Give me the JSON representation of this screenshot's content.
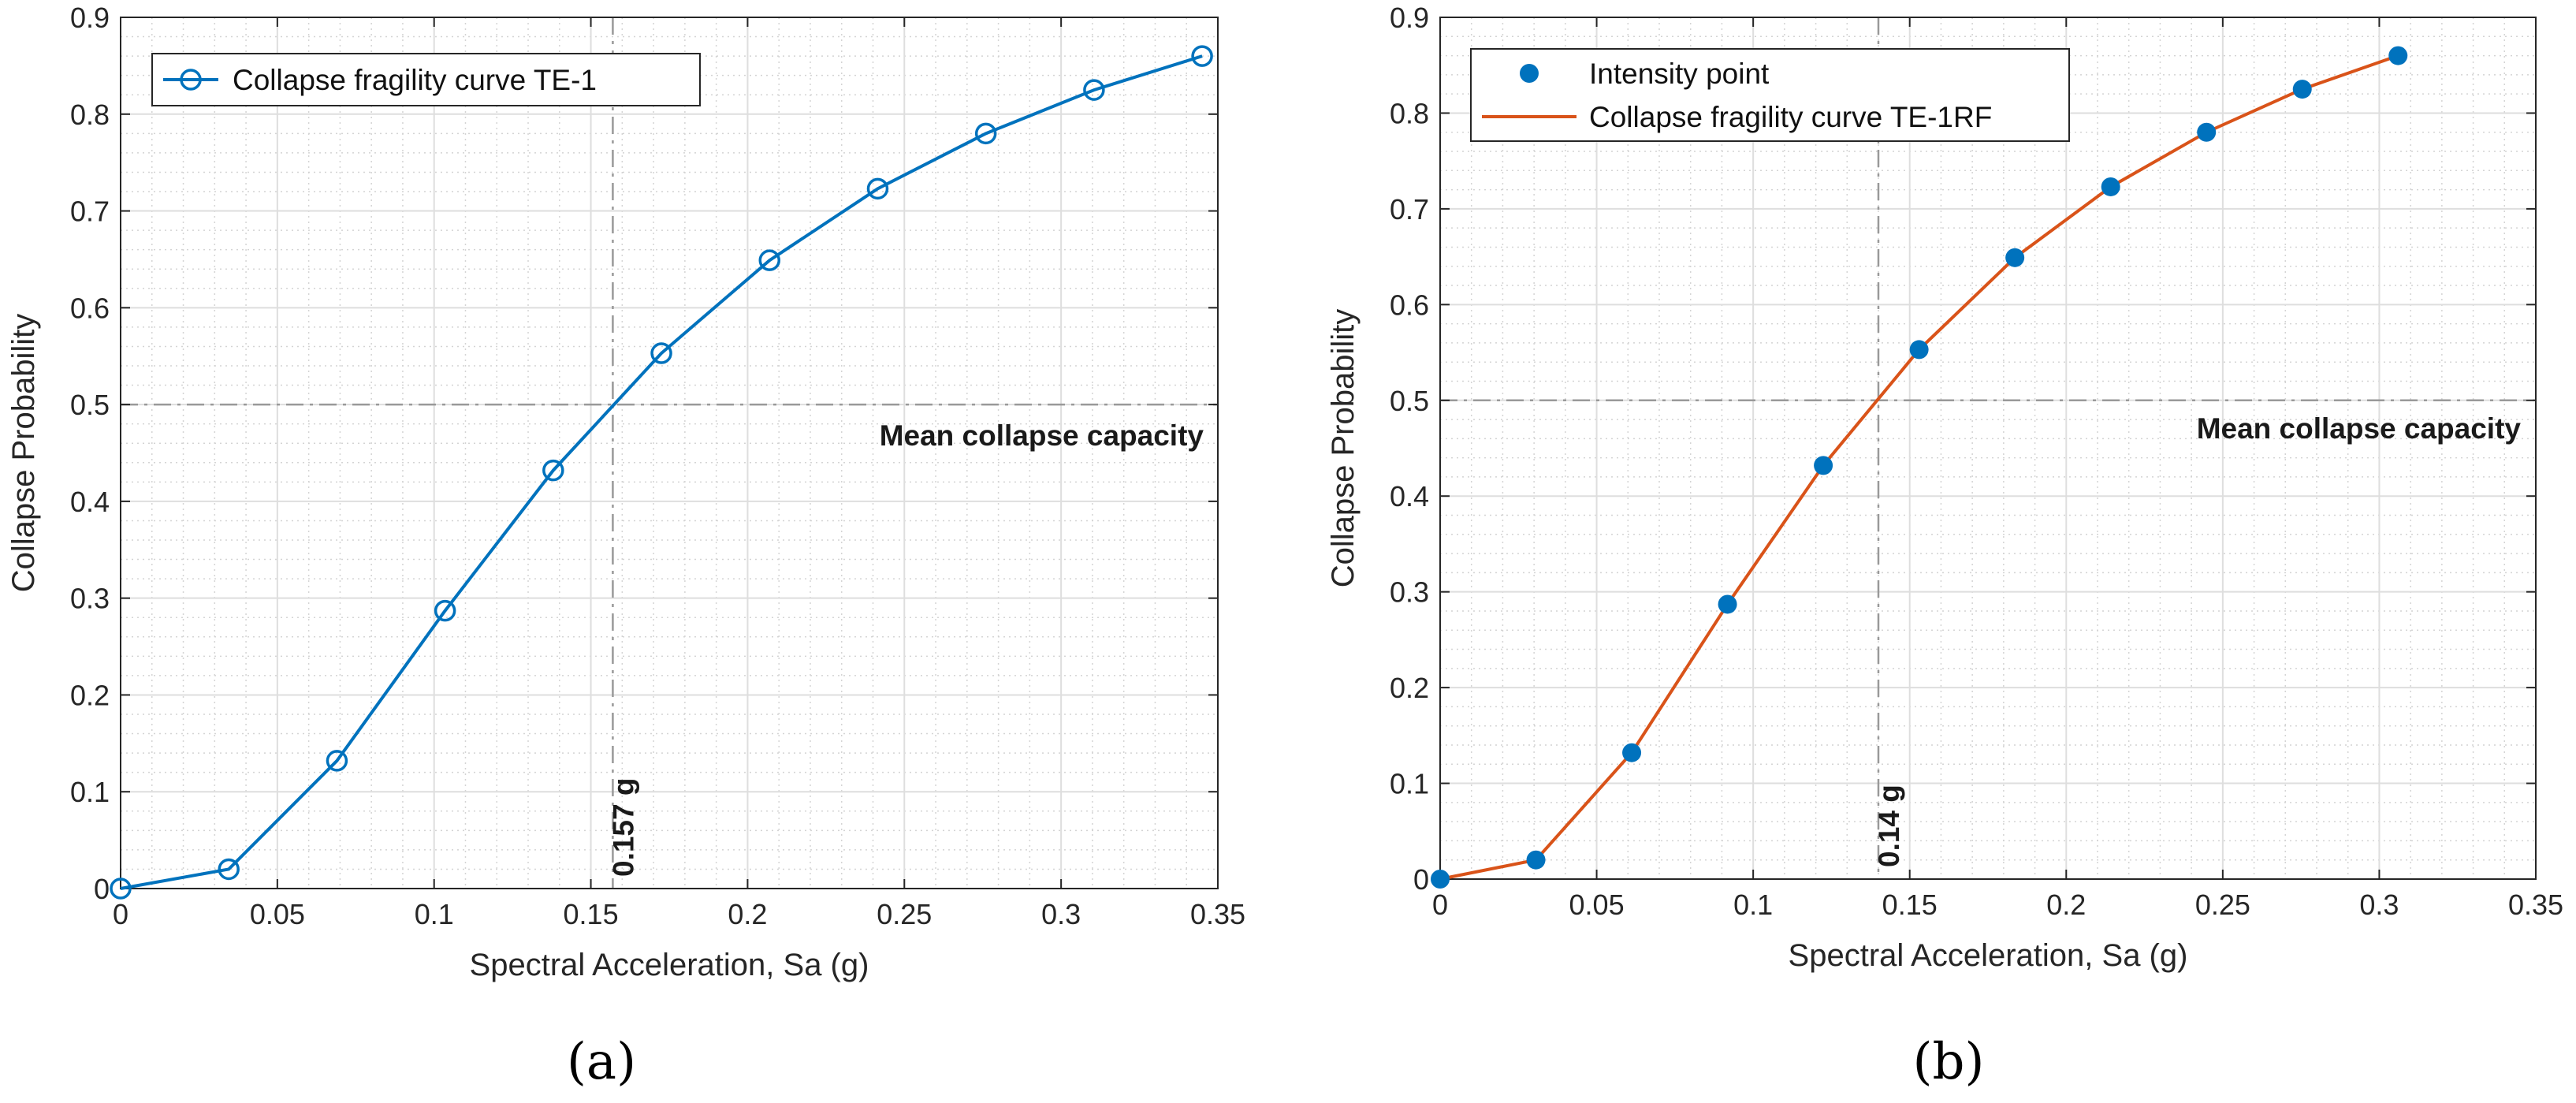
{
  "chart_data": [
    {
      "type": "line",
      "panel": "(a)",
      "xlabel": "Spectral Acceleration, Sa (g)",
      "ylabel": "Collapse Probability",
      "xlim": [
        0,
        0.35
      ],
      "ylim": [
        0,
        0.9
      ],
      "xticks": [
        0,
        0.05,
        0.1,
        0.15,
        0.2,
        0.25,
        0.3,
        0.35
      ],
      "xtick_labels": [
        "0",
        "0.05",
        "0.1",
        "0.15",
        "0.2",
        "0.25",
        "0.3",
        "0.35"
      ],
      "yticks": [
        0,
        0.1,
        0.2,
        0.3,
        0.4,
        0.5,
        0.6,
        0.7,
        0.8,
        0.9
      ],
      "ytick_labels": [
        "0",
        "0.1",
        "0.2",
        "0.3",
        "0.4",
        "0.5",
        "0.6",
        "0.7",
        "0.8",
        "0.9"
      ],
      "grid": true,
      "minor_grid": true,
      "series": [
        {
          "name": "Collapse fragility curve TE-1",
          "style": "line-with-circle-markers",
          "color": "#0072BD",
          "x": [
            0,
            0.0345,
            0.069,
            0.1035,
            0.138,
            0.1725,
            0.207,
            0.2415,
            0.276,
            0.3105,
            0.345
          ],
          "y": [
            0,
            0.02,
            0.132,
            0.287,
            0.432,
            0.553,
            0.649,
            0.723,
            0.78,
            0.825,
            0.86
          ]
        }
      ],
      "legend": {
        "position": "top-left",
        "entries": [
          "Collapse fragility curve TE-1"
        ]
      },
      "ref_lines": {
        "x": 0.157,
        "y": 0.5,
        "color": "#999999"
      },
      "annotations": {
        "mean_label": "Mean collapse capacity",
        "mean_value_label": "0.157 g"
      }
    },
    {
      "type": "line",
      "panel": "(b)",
      "xlabel": "Spectral Acceleration, Sa (g)",
      "ylabel": "Collapse Probability",
      "xlim": [
        0,
        0.35
      ],
      "ylim": [
        0,
        0.9
      ],
      "xticks": [
        0,
        0.05,
        0.1,
        0.15,
        0.2,
        0.25,
        0.3,
        0.35
      ],
      "xtick_labels": [
        "0",
        "0.05",
        "0.1",
        "0.15",
        "0.2",
        "0.25",
        "0.3",
        "0.35"
      ],
      "yticks": [
        0,
        0.1,
        0.2,
        0.3,
        0.4,
        0.5,
        0.6,
        0.7,
        0.8,
        0.9
      ],
      "ytick_labels": [
        "0",
        "0.1",
        "0.2",
        "0.3",
        "0.4",
        "0.5",
        "0.6",
        "0.7",
        "0.8",
        "0.9"
      ],
      "grid": true,
      "minor_grid": true,
      "series": [
        {
          "name": "Intensity point",
          "style": "filled-circle-markers",
          "color": "#0072BD",
          "x": [
            0,
            0.0306,
            0.0612,
            0.0918,
            0.1224,
            0.153,
            0.1836,
            0.2142,
            0.2448,
            0.2754,
            0.306
          ],
          "y": [
            0,
            0.02,
            0.132,
            0.287,
            0.432,
            0.553,
            0.649,
            0.723,
            0.78,
            0.825,
            0.86
          ]
        },
        {
          "name": "Collapse fragility curve TE-1RF",
          "style": "line",
          "color": "#D95319",
          "x": [
            0,
            0.0306,
            0.0612,
            0.0918,
            0.1224,
            0.153,
            0.1836,
            0.2142,
            0.2448,
            0.2754,
            0.306
          ],
          "y": [
            0,
            0.02,
            0.132,
            0.287,
            0.432,
            0.553,
            0.649,
            0.723,
            0.78,
            0.825,
            0.86
          ]
        }
      ],
      "legend": {
        "position": "top-left",
        "entries": [
          "Intensity point",
          "Collapse fragility curve TE-1RF"
        ]
      },
      "ref_lines": {
        "x": 0.14,
        "y": 0.5,
        "color": "#999999"
      },
      "annotations": {
        "mean_label": "Mean collapse capacity",
        "mean_value_label": "0.14 g"
      }
    }
  ]
}
